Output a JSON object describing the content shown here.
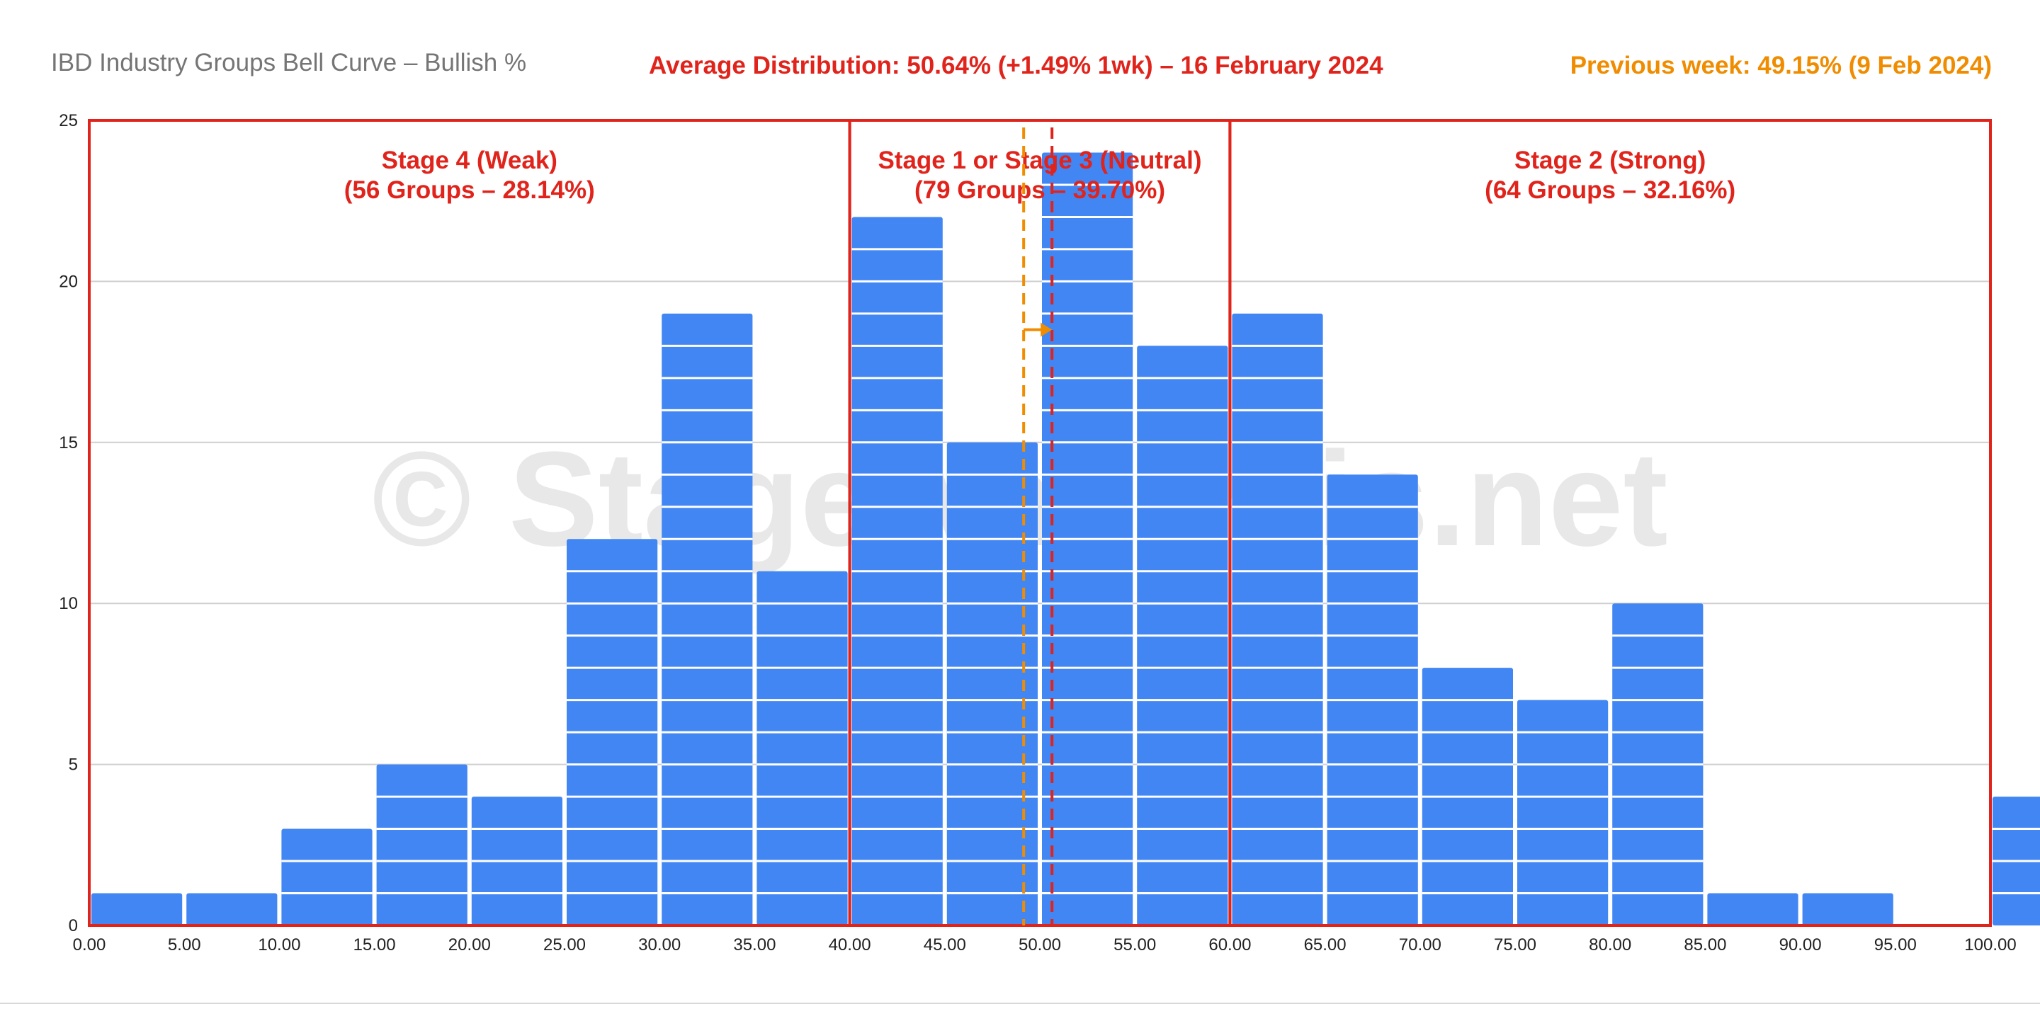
{
  "chart_data": {
    "type": "bar",
    "title": "IBD Industry Groups Bell Curve – Bullish %",
    "subtitle_center": "Average Distribution: 50.64% (+1.49% 1wk) – 16 February 2024",
    "subtitle_right": "Previous week: 49.15% (9 Feb 2024)",
    "watermark": "© StageAnalysis.net",
    "bin_edges": [
      0,
      5,
      10,
      15,
      20,
      25,
      30,
      35,
      40,
      45,
      50,
      55,
      60,
      65,
      70,
      75,
      80,
      85,
      90,
      95,
      100
    ],
    "values": [
      1,
      1,
      3,
      5,
      4,
      12,
      19,
      11,
      22,
      15,
      24,
      18,
      19,
      14,
      8,
      7,
      10,
      1,
      1,
      0,
      4
    ],
    "x_ticks": [
      "0.00",
      "5.00",
      "10.00",
      "15.00",
      "20.00",
      "25.00",
      "30.00",
      "35.00",
      "40.00",
      "45.00",
      "50.00",
      "55.00",
      "60.00",
      "65.00",
      "70.00",
      "75.00",
      "80.00",
      "85.00",
      "90.00",
      "95.00",
      "100.00"
    ],
    "y_ticks": [
      "0",
      "5",
      "10",
      "15",
      "20",
      "25"
    ],
    "xlim": [
      0,
      100
    ],
    "ylim": [
      0,
      25
    ],
    "grid": "horizontal",
    "current_average": 50.64,
    "previous_average": 49.15,
    "arrow_y": 18.5,
    "zones": [
      {
        "from": 0,
        "to": 40,
        "label_line1": "Stage 4 (Weak)",
        "label_line2": "(56 Groups – 28.14%)"
      },
      {
        "from": 40,
        "to": 60,
        "label_line1": "Stage 1 or Stage 3 (Neutral)",
        "label_line2": "(79 Groups – 39.70%)"
      },
      {
        "from": 60,
        "to": 100,
        "label_line1": "Stage 2 (Strong)",
        "label_line2": "(64 Groups – 32.16%)"
      }
    ],
    "colors": {
      "bar": "#4286f4",
      "zone": "#e0231b",
      "current_line": "#e0231b",
      "previous_line": "#f08c00",
      "title": "#757575",
      "grid": "#cfcfcf",
      "watermark": "#d6d6d6"
    }
  }
}
